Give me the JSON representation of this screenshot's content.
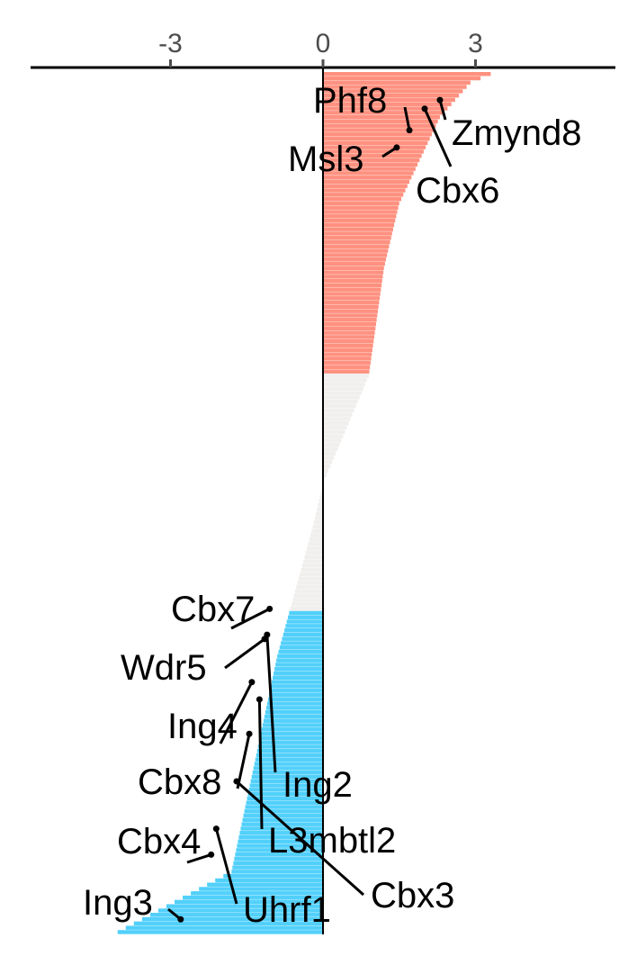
{
  "chart_data": {
    "type": "bar",
    "orientation": "horizontal",
    "sorted": "descending",
    "xlim": [
      -5.8,
      5.8
    ],
    "x_ticks": [
      -3,
      0,
      3
    ],
    "x_tick_labels": [
      "-3",
      "0",
      "3"
    ],
    "axis_position": "top",
    "grid": false,
    "legend": "none",
    "n_bars": 200,
    "bar_profile": {
      "rank": [
        0,
        2,
        10,
        30,
        45,
        70,
        95,
        105,
        135,
        185,
        200
      ],
      "value": [
        3.3,
        2.9,
        2.3,
        1.5,
        1.2,
        0.9,
        0.0,
        -0.2,
        -0.9,
        -1.8,
        -4.2
      ]
    },
    "groups": [
      {
        "name": "up",
        "from_rank": 0,
        "to_rank": 69,
        "color": "#ff9180"
      },
      {
        "name": "unchanged",
        "from_rank": 70,
        "to_rank": 124,
        "color": "#f0efed"
      },
      {
        "name": "down",
        "from_rank": 125,
        "to_rank": 199,
        "color": "#52d0fb"
      }
    ],
    "labels": [
      {
        "text": "Phf8",
        "rank": 13,
        "value": 1.7
      },
      {
        "text": "Zmynd8",
        "rank": 6,
        "value": 2.3
      },
      {
        "text": "Cbx6",
        "rank": 8,
        "value": 2.0
      },
      {
        "text": "Msl3",
        "rank": 17,
        "value": 1.45
      },
      {
        "text": "Cbx7",
        "rank": 124,
        "value": -1.05
      },
      {
        "text": "Wdr5",
        "rank": 131,
        "value": -1.15
      },
      {
        "text": "Ing4",
        "rank": 141,
        "value": -1.4
      },
      {
        "text": "Ing2",
        "rank": 130,
        "value": -1.1
      },
      {
        "text": "Cbx8",
        "rank": 153,
        "value": -1.45
      },
      {
        "text": "L3mbtl2",
        "rank": 145,
        "value": -1.25
      },
      {
        "text": "Cbx4",
        "rank": 181,
        "value": -2.2
      },
      {
        "text": "Uhrf1",
        "rank": 175,
        "value": -2.1
      },
      {
        "text": "Cbx3",
        "rank": 164,
        "value": -1.7
      },
      {
        "text": "Ing3",
        "rank": 196,
        "value": -2.8
      }
    ]
  }
}
